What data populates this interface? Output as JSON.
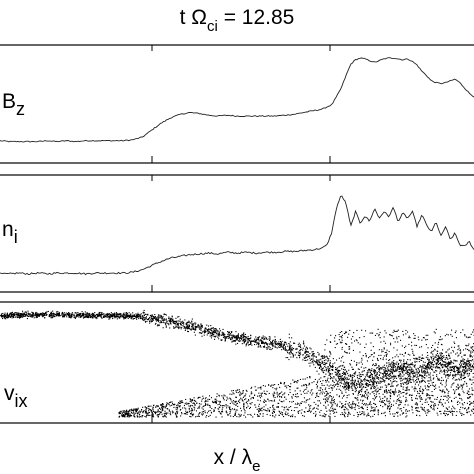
{
  "figure": {
    "title_prefix": "t Ω",
    "title_sub": "ci",
    "title_suffix": " = 12.85",
    "xlabel_prefix": "x / λ",
    "xlabel_sub": "e"
  },
  "chart_data": [
    {
      "type": "line",
      "panel_label": "B",
      "panel_label_sub": "z",
      "x": [
        0,
        2,
        4,
        6,
        8,
        10,
        12,
        14,
        16,
        18,
        20,
        22,
        24,
        26,
        28,
        30,
        32,
        34,
        36,
        38,
        40,
        42,
        44,
        46,
        48,
        50,
        52,
        54,
        56,
        58,
        60,
        62,
        64,
        66,
        68,
        70,
        71,
        72,
        73,
        74,
        75,
        76,
        77,
        78,
        79,
        80,
        81,
        82,
        83,
        84,
        85,
        86,
        87,
        88,
        89,
        90,
        91,
        92,
        93,
        94,
        95,
        96,
        97,
        98,
        99,
        100
      ],
      "values": [
        0.06,
        0.05,
        0.05,
        0.05,
        0.05,
        0.06,
        0.05,
        0.06,
        0.05,
        0.06,
        0.06,
        0.06,
        0.06,
        0.06,
        0.07,
        0.1,
        0.18,
        0.26,
        0.32,
        0.36,
        0.38,
        0.37,
        0.35,
        0.34,
        0.35,
        0.34,
        0.34,
        0.34,
        0.34,
        0.34,
        0.35,
        0.36,
        0.38,
        0.4,
        0.42,
        0.47,
        0.56,
        0.66,
        0.8,
        0.93,
        0.98,
        1.0,
        0.99,
        0.97,
        0.95,
        0.97,
        0.99,
        1.0,
        1.0,
        0.99,
        0.98,
        0.99,
        0.96,
        0.92,
        0.85,
        0.8,
        0.74,
        0.72,
        0.71,
        0.72,
        0.74,
        0.76,
        0.72,
        0.66,
        0.6,
        0.56
      ]
    },
    {
      "type": "line",
      "panel_label": "n",
      "panel_label_sub": "i",
      "x": [
        0,
        2,
        4,
        6,
        8,
        10,
        12,
        14,
        16,
        18,
        20,
        22,
        24,
        26,
        28,
        30,
        32,
        34,
        36,
        38,
        40,
        42,
        44,
        46,
        48,
        50,
        52,
        54,
        56,
        58,
        60,
        62,
        64,
        66,
        68,
        69,
        70,
        71,
        72,
        73,
        74,
        75,
        76,
        77,
        78,
        79,
        80,
        81,
        82,
        83,
        84,
        85,
        86,
        87,
        88,
        89,
        90,
        91,
        92,
        93,
        94,
        95,
        96,
        97,
        98,
        99,
        100
      ],
      "values": [
        0.05,
        0.05,
        0.06,
        0.05,
        0.06,
        0.05,
        0.06,
        0.06,
        0.06,
        0.05,
        0.06,
        0.06,
        0.06,
        0.06,
        0.07,
        0.1,
        0.15,
        0.2,
        0.24,
        0.26,
        0.28,
        0.29,
        0.3,
        0.29,
        0.31,
        0.3,
        0.31,
        0.3,
        0.31,
        0.31,
        0.32,
        0.32,
        0.33,
        0.34,
        0.36,
        0.4,
        0.55,
        0.85,
        1.0,
        0.9,
        0.62,
        0.8,
        0.66,
        0.75,
        0.68,
        0.84,
        0.72,
        0.8,
        0.74,
        0.85,
        0.68,
        0.78,
        0.72,
        0.8,
        0.62,
        0.76,
        0.64,
        0.55,
        0.68,
        0.5,
        0.62,
        0.46,
        0.54,
        0.4,
        0.38,
        0.44,
        0.34
      ]
    },
    {
      "type": "scatter",
      "panel_label": "v",
      "panel_label_sub": "ix",
      "main_beam_x": [
        0,
        10,
        20,
        25,
        30,
        35,
        40,
        45,
        50,
        55,
        60,
        63,
        66,
        70,
        73,
        76,
        80,
        84,
        88,
        92,
        96,
        100
      ],
      "main_beam_values": [
        0.92,
        0.93,
        0.92,
        0.92,
        0.91,
        0.88,
        0.83,
        0.77,
        0.72,
        0.69,
        0.66,
        0.62,
        0.55,
        0.43,
        0.35,
        0.3,
        0.4,
        0.46,
        0.4,
        0.55,
        0.42,
        0.5
      ],
      "lower_cloud_x": [
        25,
        100
      ],
      "lower_cloud_values": [
        0.05,
        0.62
      ]
    }
  ]
}
